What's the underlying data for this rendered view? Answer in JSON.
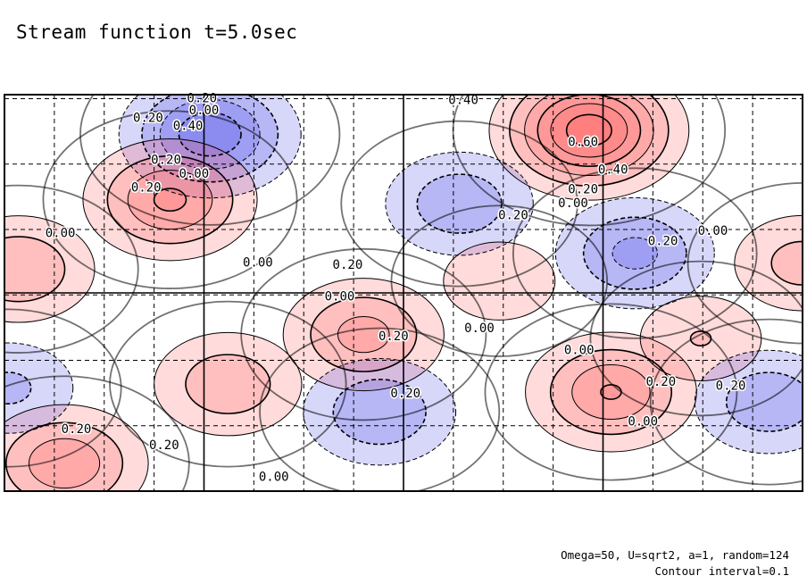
{
  "title": "Stream function t=5.0sec",
  "notes": {
    "params": "Omega=50, U=sqrt2, a=1, random=124",
    "interval": "Contour interval=0.1"
  },
  "colors": {
    "positive": "#ff5a5a",
    "negative": "#4a4ae6",
    "frame": "#000000"
  },
  "chart_data": {
    "type": "heatmap",
    "title": "Stream function t=5.0sec",
    "xlabel": "",
    "ylabel": "",
    "xlim": [
      0,
      4
    ],
    "ylim": [
      0,
      2
    ],
    "grid": true,
    "contour_interval": 0.1,
    "contour_labels": [
      {
        "text": "0.20",
        "x": 0.99,
        "y": 1.98
      },
      {
        "text": "0.00",
        "x": 1.0,
        "y": 1.92
      },
      {
        "text": "0.20",
        "x": 0.72,
        "y": 1.88
      },
      {
        "text": "0.40",
        "x": 0.92,
        "y": 1.84
      },
      {
        "text": "0.20",
        "x": 0.81,
        "y": 1.67
      },
      {
        "text": "0.00",
        "x": 0.95,
        "y": 1.6
      },
      {
        "text": "0.20",
        "x": 0.71,
        "y": 1.53
      },
      {
        "text": "0.00",
        "x": 0.28,
        "y": 1.3
      },
      {
        "text": "0.00",
        "x": 1.27,
        "y": 1.15
      },
      {
        "text": "0.20",
        "x": 1.72,
        "y": 1.14
      },
      {
        "text": "0.00",
        "x": 1.68,
        "y": 0.98
      },
      {
        "text": "0.20",
        "x": 1.95,
        "y": 0.78
      },
      {
        "text": "0.00",
        "x": 2.38,
        "y": 0.82
      },
      {
        "text": "0.20",
        "x": 2.01,
        "y": 0.49
      },
      {
        "text": "0.40",
        "x": 2.3,
        "y": 1.97
      },
      {
        "text": "0.60",
        "x": 2.9,
        "y": 1.76
      },
      {
        "text": "0.40",
        "x": 3.05,
        "y": 1.62
      },
      {
        "text": "0.20",
        "x": 2.9,
        "y": 1.52
      },
      {
        "text": "0.00",
        "x": 2.85,
        "y": 1.45
      },
      {
        "text": "0.20",
        "x": 2.55,
        "y": 1.39
      },
      {
        "text": "0.20",
        "x": 3.3,
        "y": 1.26
      },
      {
        "text": "0.00",
        "x": 3.55,
        "y": 1.31
      },
      {
        "text": "0.00",
        "x": 2.88,
        "y": 0.71
      },
      {
        "text": "0.20",
        "x": 3.29,
        "y": 0.55
      },
      {
        "text": "0.00",
        "x": 3.2,
        "y": 0.35
      },
      {
        "text": "0.20",
        "x": 3.64,
        "y": 0.53
      },
      {
        "text": "0.20",
        "x": 0.36,
        "y": 0.31
      },
      {
        "text": "0.20",
        "x": 0.8,
        "y": 0.23
      },
      {
        "text": "0.00",
        "x": 1.35,
        "y": 0.07
      }
    ],
    "extrema": [
      {
        "sign": "positive",
        "x": 2.93,
        "y": 1.82,
        "value": 0.66
      },
      {
        "sign": "negative",
        "x": 1.03,
        "y": 1.8,
        "value": -0.48
      },
      {
        "sign": "positive",
        "x": 0.83,
        "y": 1.47,
        "value": 0.42
      },
      {
        "sign": "positive",
        "x": 0.07,
        "y": 1.12,
        "value": 0.3
      },
      {
        "sign": "negative",
        "x": 2.28,
        "y": 1.45,
        "value": -0.28
      },
      {
        "sign": "negative",
        "x": 3.16,
        "y": 1.2,
        "value": -0.33
      },
      {
        "sign": "positive",
        "x": 2.48,
        "y": 1.06,
        "value": 0.18
      },
      {
        "sign": "positive",
        "x": 1.8,
        "y": 0.79,
        "value": 0.34
      },
      {
        "sign": "positive",
        "x": 3.04,
        "y": 0.5,
        "value": 0.4
      },
      {
        "sign": "positive",
        "x": 3.49,
        "y": 0.77,
        "value": 0.2
      },
      {
        "sign": "positive",
        "x": 1.12,
        "y": 0.54,
        "value": 0.28
      },
      {
        "sign": "negative",
        "x": 1.88,
        "y": 0.4,
        "value": -0.3
      },
      {
        "sign": "negative",
        "x": 3.83,
        "y": 0.45,
        "value": -0.28
      },
      {
        "sign": "positive",
        "x": 0.3,
        "y": 0.14,
        "value": 0.38
      },
      {
        "sign": "negative",
        "x": 0.02,
        "y": 0.52,
        "value": -0.22
      },
      {
        "sign": "positive",
        "x": 4.0,
        "y": 1.15,
        "value": 0.24
      }
    ]
  }
}
